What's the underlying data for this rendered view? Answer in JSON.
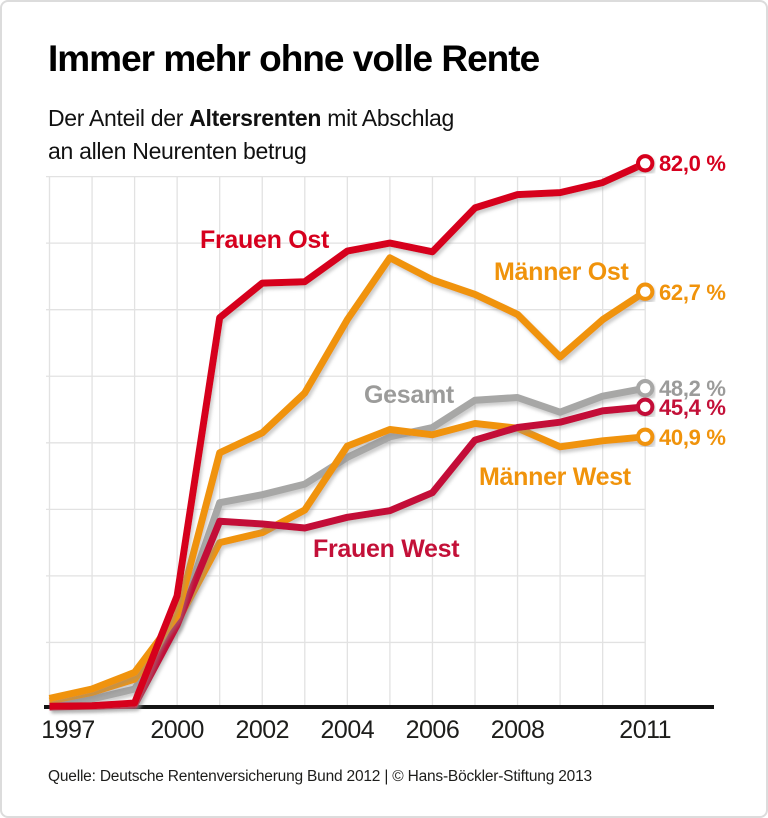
{
  "header": {
    "title": "Immer mehr ohne volle Rente",
    "subtitle_prefix": "Der Anteil der ",
    "subtitle_bold": "Altersrenten",
    "subtitle_suffix": " mit Abschlag",
    "subtitle_line2": "an allen Neurenten betrug"
  },
  "chart_data": {
    "type": "line",
    "x": [
      1997,
      1998,
      1999,
      2000,
      2001,
      2002,
      2003,
      2004,
      2005,
      2006,
      2007,
      2008,
      2009,
      2010,
      2011
    ],
    "x_ticks": [
      1997,
      2000,
      2002,
      2004,
      2006,
      2008,
      2011
    ],
    "ylim": [
      0,
      85
    ],
    "grid_y_step": 10,
    "grid_y_max": 80,
    "grid_on": true,
    "legend_position": "inline-labels",
    "grid_color": "#e2e2e2",
    "axis_color": "#141414",
    "series": [
      {
        "id": "gesamt",
        "name": "Gesamt",
        "color": "#a7a7a6",
        "label_color": "#9b9b9a",
        "end_label": "48,2 %",
        "values": [
          0.8,
          1.5,
          3.0,
          12.5,
          31.0,
          32.2,
          33.8,
          37.8,
          40.9,
          42.3,
          46.4,
          46.8,
          44.6,
          47.0,
          48.2
        ]
      },
      {
        "id": "maenner-west",
        "name": "Männer West",
        "color": "#f0930b",
        "label_color": "#f0930b",
        "end_label": "40,9 %",
        "values": [
          1.2,
          2.5,
          4.5,
          13.0,
          25.0,
          26.5,
          29.9,
          39.5,
          42.0,
          41.2,
          42.9,
          42.2,
          39.4,
          40.3,
          40.9
        ]
      },
      {
        "id": "frauen-west",
        "name": "Frauen West",
        "color": "#c31038",
        "label_color": "#c31038",
        "end_label": "45,4 %",
        "values": [
          0.3,
          0.4,
          0.6,
          12.6,
          28.2,
          27.8,
          27.2,
          28.8,
          29.8,
          32.5,
          40.4,
          42.3,
          43.1,
          44.8,
          45.4
        ]
      },
      {
        "id": "maenner-ost",
        "name": "Männer Ost",
        "color": "#f0930b",
        "label_color": "#f0930b",
        "end_label": "62,7 %",
        "values": [
          1.6,
          3.0,
          5.5,
          14.0,
          38.5,
          41.5,
          47.5,
          58.5,
          67.8,
          64.5,
          62.3,
          59.3,
          52.9,
          58.5,
          62.7
        ]
      },
      {
        "id": "frauen-ost",
        "name": "Frauen Ost",
        "color": "#d6001e",
        "label_color": "#d6001e",
        "end_label": "82,0 %",
        "values": [
          0.4,
          0.5,
          0.9,
          17.0,
          58.8,
          64.0,
          64.2,
          68.8,
          70.0,
          68.7,
          75.3,
          77.3,
          77.6,
          79.1,
          82.0
        ]
      }
    ]
  },
  "source": "Quelle: Deutsche Rentenversicherung Bund 2012 | © Hans-Böckler-Stiftung 2013"
}
